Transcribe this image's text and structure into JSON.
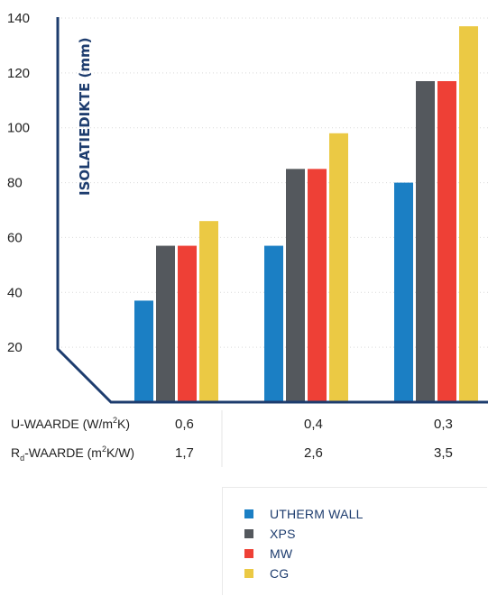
{
  "chart_data": {
    "type": "bar",
    "ylabel": "ISOLATIEDIKTE (mm)",
    "ylim": [
      0,
      140
    ],
    "yticks": [
      20,
      40,
      60,
      80,
      100,
      120,
      140
    ],
    "grid": true,
    "legend_position": "bottom-right",
    "categories": [
      "0,6",
      "0,4",
      "0,3"
    ],
    "series": [
      {
        "name": "UTHERM WALL",
        "color": "#1b7fc4",
        "values": [
          37,
          57,
          80
        ]
      },
      {
        "name": "XPS",
        "color": "#54585d",
        "values": [
          57,
          85,
          117
        ]
      },
      {
        "name": "MW",
        "color": "#ee4036",
        "values": [
          57,
          85,
          117
        ]
      },
      {
        "name": "CG",
        "color": "#ebc944",
        "values": [
          66,
          98,
          137
        ]
      }
    ],
    "row_labels": [
      {
        "label_main": "U-WAARDE (W/m",
        "label_sup": "2",
        "label_end": "K)",
        "values": [
          "0,6",
          "0,4",
          "0,3"
        ]
      },
      {
        "label_main": "R",
        "label_sub": "d",
        "label_mid": "-WAARDE (m",
        "label_sup": "2",
        "label_end": "K/W)",
        "values": [
          "1,7",
          "2,6",
          "3,5"
        ]
      }
    ],
    "axis_color": "#1d3c6e"
  }
}
